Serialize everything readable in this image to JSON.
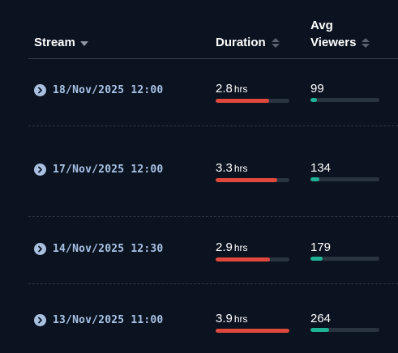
{
  "table": {
    "columns": {
      "stream": "Stream",
      "duration": "Duration",
      "viewers_line1": "Avg",
      "viewers_line2": "Viewers"
    },
    "colors": {
      "duration_bar": "#e0483c",
      "viewers_bar": "#20b296",
      "date_text": "#a9c2e6"
    },
    "rows": [
      {
        "date": "18/Nov/2025 12:00",
        "duration": "2.8",
        "duration_unit": "hrs",
        "duration_fraction": 0.72,
        "viewers": "99",
        "viewers_fraction": 0.09
      },
      {
        "date": "17/Nov/2025 12:00",
        "duration": "3.3",
        "duration_unit": "hrs",
        "duration_fraction": 0.83,
        "viewers": "134",
        "viewers_fraction": 0.13
      },
      {
        "date": "14/Nov/2025 12:30",
        "duration": "2.9",
        "duration_unit": "hrs",
        "duration_fraction": 0.74,
        "viewers": "179",
        "viewers_fraction": 0.18
      },
      {
        "date": "13/Nov/2025 11:00",
        "duration": "3.9",
        "duration_unit": "hrs",
        "duration_fraction": 1.0,
        "viewers": "264",
        "viewers_fraction": 0.27
      }
    ]
  }
}
